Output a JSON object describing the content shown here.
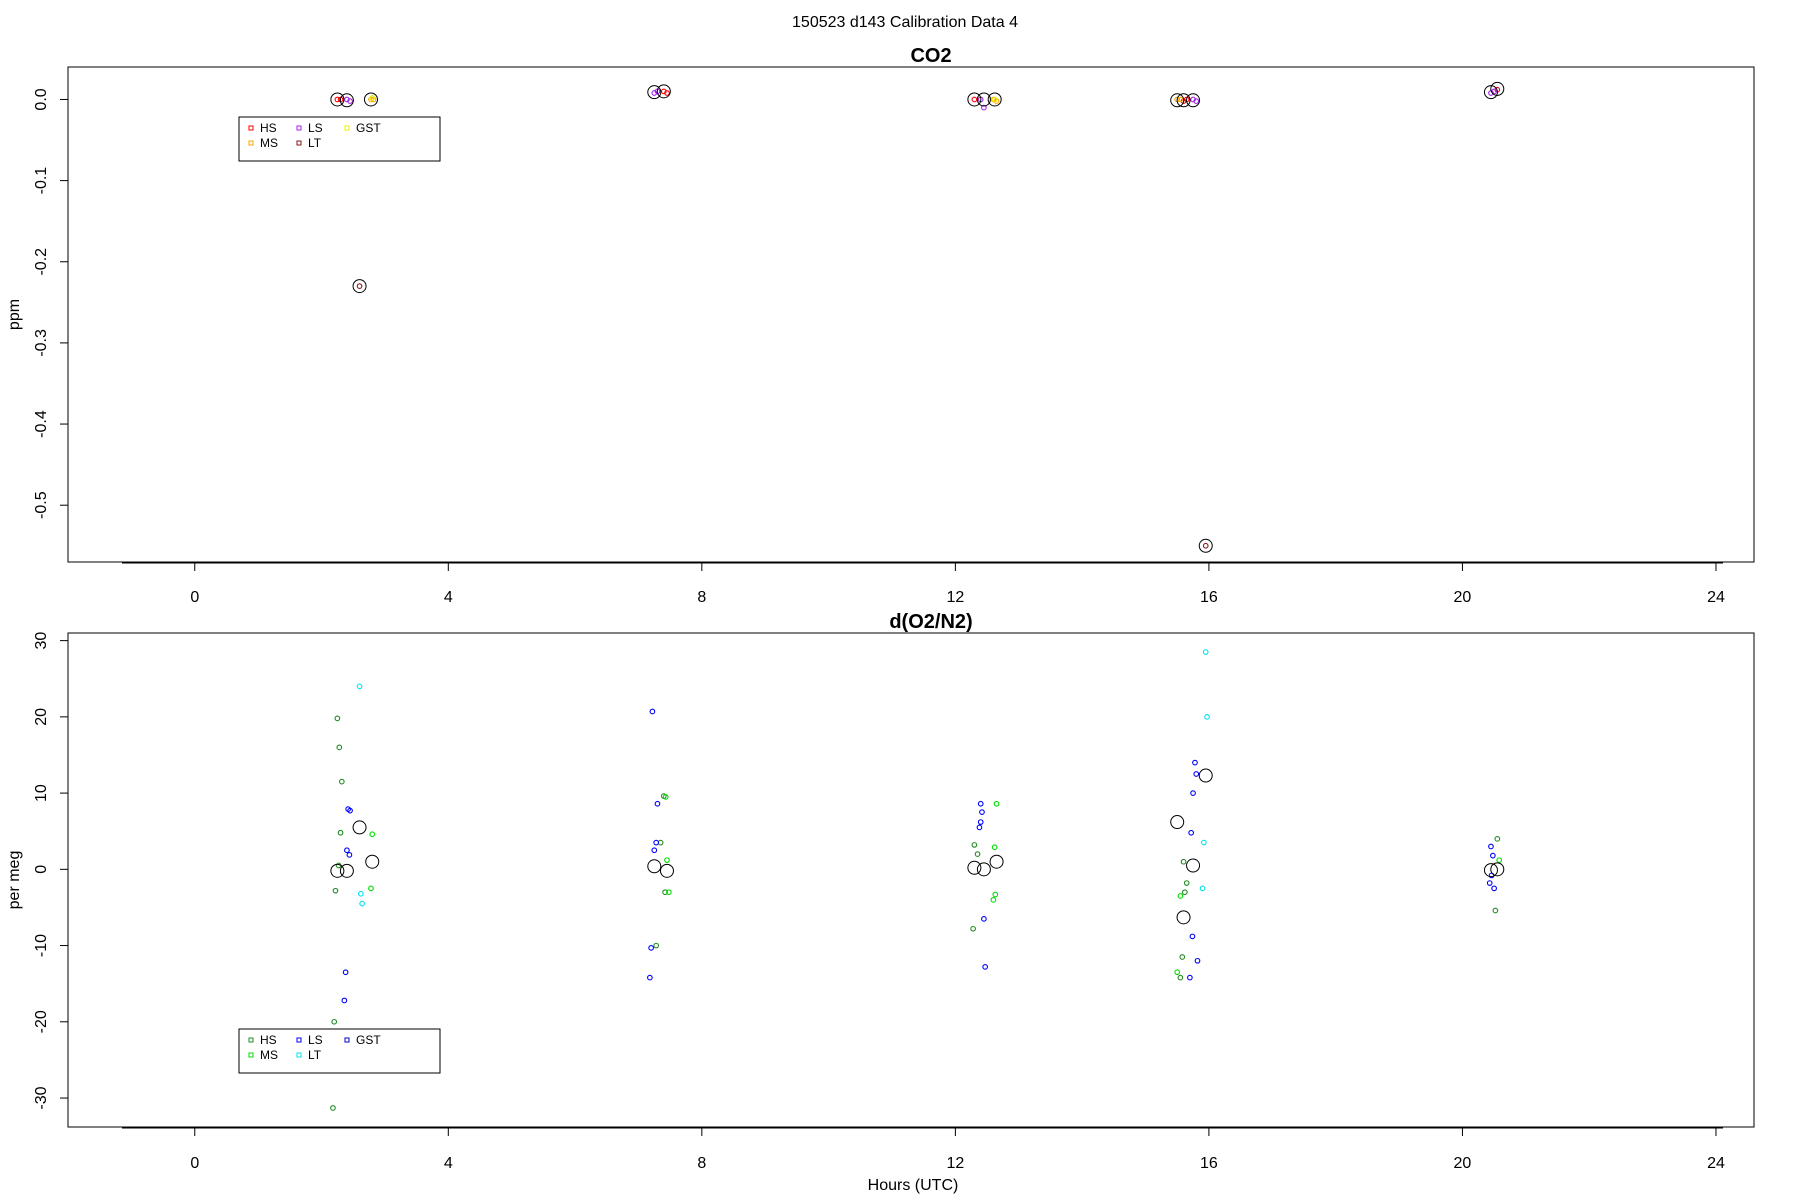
{
  "figure": {
    "title": "150523   d143   Calibration Data 4"
  },
  "legend_order": [
    "HS",
    "MS",
    "LS",
    "LT",
    "GST"
  ],
  "chart_data": [
    {
      "type": "scatter",
      "title": "CO2",
      "xlabel": "",
      "ylabel": "ppm",
      "xlim": [
        -2,
        24.6
      ],
      "ylim": [
        -0.57,
        0.04
      ],
      "xticks": [
        0,
        4,
        8,
        12,
        16,
        20,
        24
      ],
      "yticks": [
        0.0,
        -0.1,
        -0.2,
        -0.3,
        -0.4,
        -0.5
      ],
      "ytick_labels": [
        "0.0",
        "-0.1",
        "-0.2",
        "-0.3",
        "-0.4",
        "-0.5"
      ],
      "legend": {
        "position": "top-left",
        "entries": [
          "HS",
          "MS",
          "LS",
          "LT",
          "GST"
        ]
      },
      "series": [
        {
          "name": "HS",
          "color": "#ff0000",
          "points": [
            [
              2.25,
              0.0
            ],
            [
              2.3,
              0.0
            ],
            [
              7.4,
              0.01
            ],
            [
              7.45,
              0.008
            ],
            [
              12.3,
              0.0
            ],
            [
              15.6,
              -0.002
            ],
            [
              15.65,
              0.0
            ],
            [
              20.55,
              0.012
            ]
          ]
        },
        {
          "name": "MS",
          "color": "#ffa500",
          "points": [
            [
              2.78,
              0.0
            ],
            [
              2.82,
              0.0
            ],
            [
              12.6,
              0.0
            ],
            [
              12.65,
              -0.002
            ],
            [
              15.5,
              0.0
            ],
            [
              15.55,
              0.0
            ]
          ]
        },
        {
          "name": "LS",
          "color": "#a020f0",
          "points": [
            [
              2.4,
              0.0
            ],
            [
              2.45,
              -0.002
            ],
            [
              7.3,
              0.01
            ],
            [
              7.25,
              0.008
            ],
            [
              12.4,
              0.0
            ],
            [
              12.45,
              -0.01
            ],
            [
              15.75,
              0.0
            ],
            [
              15.8,
              -0.002
            ],
            [
              20.45,
              0.008
            ],
            [
              20.5,
              0.01
            ]
          ]
        },
        {
          "name": "LT",
          "color": "#8b1a1a",
          "points": [
            [
              2.6,
              -0.23
            ],
            [
              15.95,
              -0.55
            ]
          ]
        },
        {
          "name": "GST",
          "color": "#eeee00",
          "points": [
            [
              2.8,
              0.002
            ],
            [
              12.62,
              0.0
            ]
          ]
        }
      ],
      "means": [
        [
          2.25,
          0.0
        ],
        [
          2.4,
          -0.001
        ],
        [
          2.6,
          -0.23
        ],
        [
          2.78,
          0.0
        ],
        [
          7.25,
          0.009
        ],
        [
          7.4,
          0.01
        ],
        [
          12.3,
          0.0
        ],
        [
          12.45,
          0.0
        ],
        [
          12.62,
          0.0
        ],
        [
          15.5,
          -0.001
        ],
        [
          15.6,
          -0.001
        ],
        [
          15.75,
          -0.001
        ],
        [
          15.95,
          -0.55
        ],
        [
          20.45,
          0.009
        ],
        [
          20.55,
          0.013
        ]
      ]
    },
    {
      "type": "scatter",
      "title": "d(O2/N2)",
      "xlabel": "Hours (UTC)",
      "ylabel": "per meg",
      "xlim": [
        -2,
        24.6
      ],
      "ylim": [
        -33.8,
        31
      ],
      "xticks": [
        0,
        4,
        8,
        12,
        16,
        20,
        24
      ],
      "yticks": [
        30,
        20,
        10,
        0,
        -10,
        -20,
        -30
      ],
      "ytick_labels": [
        "30",
        "20",
        "10",
        "0",
        "-10",
        "-20",
        "-30"
      ],
      "legend": {
        "position": "bottom-left",
        "entries": [
          "HS",
          "MS",
          "LS",
          "LT",
          "GST"
        ]
      },
      "series": [
        {
          "name": "HS",
          "color": "#228b22",
          "points": [
            [
              2.25,
              19.8
            ],
            [
              2.28,
              16.0
            ],
            [
              2.32,
              11.5
            ],
            [
              2.3,
              4.8
            ],
            [
              2.27,
              0.5
            ],
            [
              2.22,
              -2.8
            ],
            [
              2.2,
              -20.0
            ],
            [
              2.18,
              -31.3
            ],
            [
              7.4,
              9.6
            ],
            [
              7.35,
              3.5
            ],
            [
              7.28,
              -10.0
            ],
            [
              7.42,
              -3.0
            ],
            [
              12.3,
              3.2
            ],
            [
              12.35,
              2.0
            ],
            [
              12.28,
              -7.8
            ],
            [
              15.6,
              1.0
            ],
            [
              15.62,
              -3.0
            ],
            [
              15.58,
              -11.5
            ],
            [
              15.55,
              -14.2
            ],
            [
              15.65,
              -1.8
            ],
            [
              20.55,
              4.0
            ],
            [
              20.52,
              -5.4
            ]
          ]
        },
        {
          "name": "MS",
          "color": "#00dd00",
          "points": [
            [
              2.8,
              4.6
            ],
            [
              2.78,
              -2.5
            ],
            [
              7.45,
              1.2
            ],
            [
              7.43,
              9.5
            ],
            [
              7.48,
              -3.0
            ],
            [
              12.65,
              8.6
            ],
            [
              12.62,
              2.9
            ],
            [
              12.6,
              -4.0
            ],
            [
              12.63,
              -3.3
            ],
            [
              15.55,
              -3.5
            ],
            [
              15.5,
              -13.5
            ],
            [
              20.58,
              1.2
            ]
          ]
        },
        {
          "name": "LS",
          "color": "#0000ff",
          "points": [
            [
              2.42,
              7.9
            ],
            [
              2.45,
              7.7
            ],
            [
              2.4,
              2.5
            ],
            [
              2.44,
              1.9
            ],
            [
              2.38,
              -13.5
            ],
            [
              2.36,
              -17.2
            ],
            [
              7.22,
              20.7
            ],
            [
              7.3,
              8.6
            ],
            [
              7.28,
              3.5
            ],
            [
              7.25,
              2.5
            ],
            [
              7.2,
              -10.3
            ],
            [
              7.18,
              -14.2
            ],
            [
              12.4,
              8.6
            ],
            [
              12.42,
              7.5
            ],
            [
              12.4,
              6.2
            ],
            [
              12.38,
              5.5
            ],
            [
              12.45,
              -6.5
            ],
            [
              12.47,
              -12.8
            ],
            [
              15.78,
              14.0
            ],
            [
              15.8,
              12.5
            ],
            [
              15.75,
              10.0
            ],
            [
              15.72,
              4.8
            ],
            [
              15.74,
              -8.8
            ],
            [
              15.82,
              -12.0
            ],
            [
              15.7,
              -14.2
            ],
            [
              20.45,
              3.0
            ],
            [
              20.48,
              1.8
            ],
            [
              20.46,
              -0.8
            ],
            [
              20.5,
              -2.5
            ],
            [
              20.43,
              -1.8
            ]
          ]
        },
        {
          "name": "LT",
          "color": "#00e5ee",
          "points": [
            [
              2.6,
              24.0
            ],
            [
              2.62,
              -3.2
            ],
            [
              2.64,
              -4.5
            ],
            [
              15.95,
              28.5
            ],
            [
              15.97,
              20.0
            ],
            [
              15.92,
              3.5
            ],
            [
              15.9,
              -2.5
            ]
          ]
        },
        {
          "name": "GST",
          "color": "#0000cd",
          "points": []
        }
      ],
      "means": [
        [
          2.25,
          -0.2
        ],
        [
          2.4,
          -0.2
        ],
        [
          2.6,
          5.5
        ],
        [
          2.8,
          1.0
        ],
        [
          7.25,
          0.4
        ],
        [
          7.45,
          -0.2
        ],
        [
          12.3,
          0.2
        ],
        [
          12.45,
          0.0
        ],
        [
          12.65,
          1.0
        ],
        [
          15.5,
          6.2
        ],
        [
          15.6,
          -6.3
        ],
        [
          15.75,
          0.5
        ],
        [
          15.95,
          12.3
        ],
        [
          20.45,
          -0.1
        ],
        [
          20.55,
          0.0
        ]
      ]
    }
  ]
}
